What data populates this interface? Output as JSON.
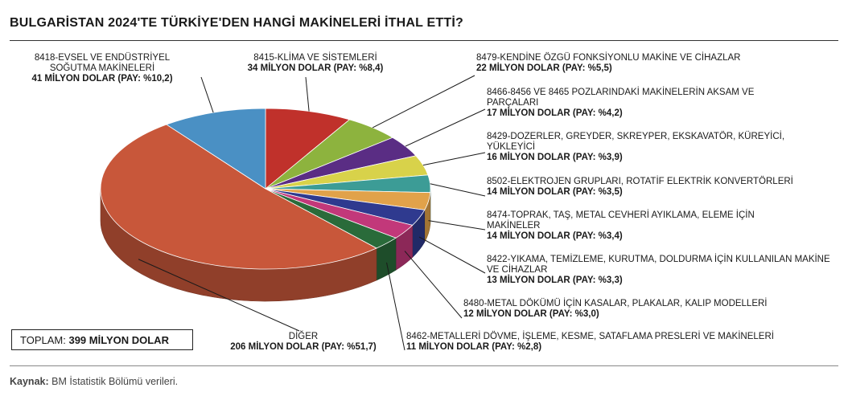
{
  "title": "BULGARİSTAN 2024'TE TÜRKİYE'DEN HANGİ MAKİNELERİ İTHAL ETTİ?",
  "total": {
    "label": "TOPLAM:",
    "value": "399 MİLYON DOLAR"
  },
  "source": {
    "label": "Kaynak:",
    "text": "BM İstatistik Bölümü verileri."
  },
  "chart_data": {
    "type": "pie",
    "unit": "MİLYON DOLAR",
    "slices": [
      {
        "name": "8415-KLİMA VE SİSTEMLERİ",
        "value": 34,
        "value_text": "34 MİLYON DOLAR (PAY: %8,4)",
        "share": 8.4,
        "color": "#c0312b"
      },
      {
        "name": "8479-KENDİNE ÖZGÜ FONKSİYONLU MAKİNE VE CİHAZLAR",
        "value": 22,
        "value_text": "22 MİLYON DOLAR (PAY: %5,5)",
        "share": 5.5,
        "color": "#8db33e"
      },
      {
        "name": "8466-8456 VE 8465 POZLARINDAKİ MAKİNELERİN AKSAM VE PARÇALARI",
        "value": 17,
        "value_text": "17 MİLYON DOLAR (PAY: %4,2)",
        "share": 4.2,
        "color": "#5a2d84"
      },
      {
        "name": "8429-DOZERLER, GREYDER, SKREYPER, EKSKAVATÖR, KÜREYİCİ, YÜKLEYİCİ",
        "value": 16,
        "value_text": "16 MİLYON DOLAR (PAY: %3,9)",
        "share": 3.9,
        "color": "#d8d24a"
      },
      {
        "name": "8502-ELEKTROJEN GRUPLARI, ROTATİF ELEKTRİK KONVERTÖRLERİ",
        "value": 14,
        "value_text": "14 MİLYON DOLAR (PAY: %3,5)",
        "share": 3.5,
        "color": "#3c9c96"
      },
      {
        "name": "8474-TOPRAK, TAŞ, METAL CEVHERİ AYIKLAMA, ELEME İÇİN MAKİNELER",
        "value": 14,
        "value_text": "14 MİLYON DOLAR (PAY: %3,4)",
        "share": 3.4,
        "color": "#e1a24a"
      },
      {
        "name": "8422-YIKAMA, TEMİZLEME, KURUTMA, DOLDURMA İÇİN KULLANILAN MAKİNE VE CİHAZLAR",
        "value": 13,
        "value_text": "13 MİLYON DOLAR (PAY: %3,3)",
        "share": 3.3,
        "color": "#2f3a8f"
      },
      {
        "name": "8480-METAL DÖKÜMÜ İÇİN KASALAR, PLAKALAR, KALIP MODELLERİ",
        "value": 12,
        "value_text": "12 MİLYON DOLAR (PAY: %3,0)",
        "share": 3.0,
        "color": "#c2387a"
      },
      {
        "name": "8462-METALLERİ DÖVME, İŞLEME, KESME, SATAFLAMA PRESLERİ VE MAKİNELERİ",
        "value": 11,
        "value_text": "11 MİLYON DOLAR (PAY: %2,8)",
        "share": 2.8,
        "color": "#2a6b3a"
      },
      {
        "name": "DİĞER",
        "value": 206,
        "value_text": "206 MİLYON DOLAR (PAY: %51,7)",
        "share": 51.7,
        "color": "#c8573a"
      },
      {
        "name": "8418-EVSEL VE ENDÜSTRİYEL SOĞUTMA MAKİNELERİ",
        "value": 41,
        "value_text": "41 MİLYON DOLAR (PAY: %10,2)",
        "share": 10.2,
        "color": "#4a90c4"
      }
    ]
  }
}
